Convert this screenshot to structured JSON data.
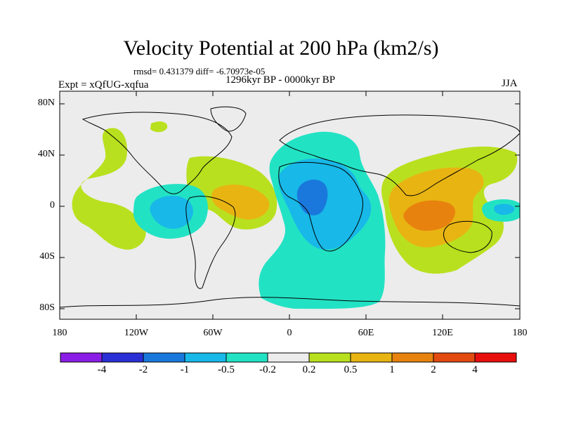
{
  "title": "Velocity Potential at 200 hPa (km2/s)",
  "stats": "rmsd= 0.431379 diff= -6.70973e-05",
  "period": "1296kyr BP - 0000kyr BP",
  "experiment": "Expt = xQfUG-xqfua",
  "season": "JJA",
  "lat_ticks": [
    "80N",
    "40N",
    "0",
    "40S",
    "80S"
  ],
  "lon_ticks": [
    "180",
    "120W",
    "60W",
    "0",
    "60E",
    "120E",
    "180"
  ],
  "colorbar": {
    "labels": [
      "-4",
      "-2",
      "-1",
      "-0.5",
      "-0.2",
      "0.2",
      "0.5",
      "1",
      "2",
      "4"
    ],
    "colors": [
      "#8a1ee6",
      "#2a2fd6",
      "#1a78dc",
      "#18b8e8",
      "#22e2c4",
      "#ececec",
      "#b9e01e",
      "#e8b412",
      "#e8820e",
      "#e24a10",
      "#e80e0e"
    ]
  },
  "colors": {
    "background": "#ececec",
    "coast": "#000000"
  }
}
